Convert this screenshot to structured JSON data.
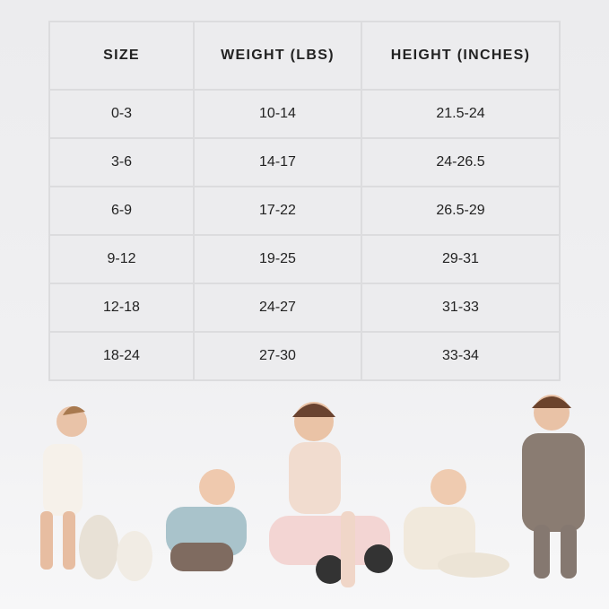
{
  "size_chart": {
    "headers": [
      "SIZE",
      "WEIGHT (LBS)",
      "HEIGHT (INCHES)"
    ],
    "rows": [
      [
        "0-3",
        "10-14",
        "21.5-24"
      ],
      [
        "3-6",
        "14-17",
        "24-26.5"
      ],
      [
        "6-9",
        "17-22",
        "26.5-29"
      ],
      [
        "9-12",
        "19-25",
        "29-31"
      ],
      [
        "12-18",
        "24-27",
        "31-33"
      ],
      [
        "18-24",
        "27-30",
        "33-34"
      ]
    ]
  },
  "colors": {
    "background": "#efeff1",
    "grid": "#dcdcde",
    "text": "#222222"
  }
}
